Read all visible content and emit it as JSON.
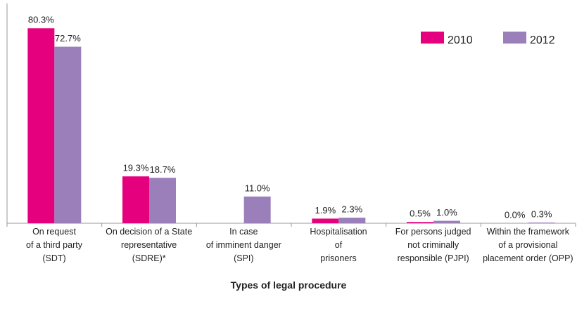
{
  "chart_data": {
    "type": "bar",
    "x_label": "Types of legal procedure",
    "categories": [
      "On request\nof a third party\n(SDT)",
      "On decision of a State\nrepresentative\n(SDRE)*",
      "In case\nof imminent danger\n(SPI)",
      "Hospitalisation\nof\nprisoners",
      "For persons judged\nnot criminally\nresponsible (PJPI)",
      "Within the framework\nof a provisional\nplacement order (OPP)"
    ],
    "series": [
      {
        "name": "2010",
        "color": "#e5007e",
        "values": [
          80.3,
          19.3,
          null,
          1.9,
          0.5,
          0
        ],
        "value_labels": [
          "80.3%",
          "19.3%",
          null,
          "1.9%",
          "0.5%",
          "0.0%"
        ]
      },
      {
        "name": "2012",
        "color": "#9b7fbb",
        "values": [
          72.7,
          18.7,
          11.0,
          2.3,
          1.0,
          0.3
        ],
        "value_labels": [
          "72.7%",
          "18.7%",
          "11.0%",
          "2.3%",
          "1.0%",
          "0.3%"
        ]
      }
    ],
    "ylim": [
      0,
      85
    ],
    "legend": "upper right"
  }
}
